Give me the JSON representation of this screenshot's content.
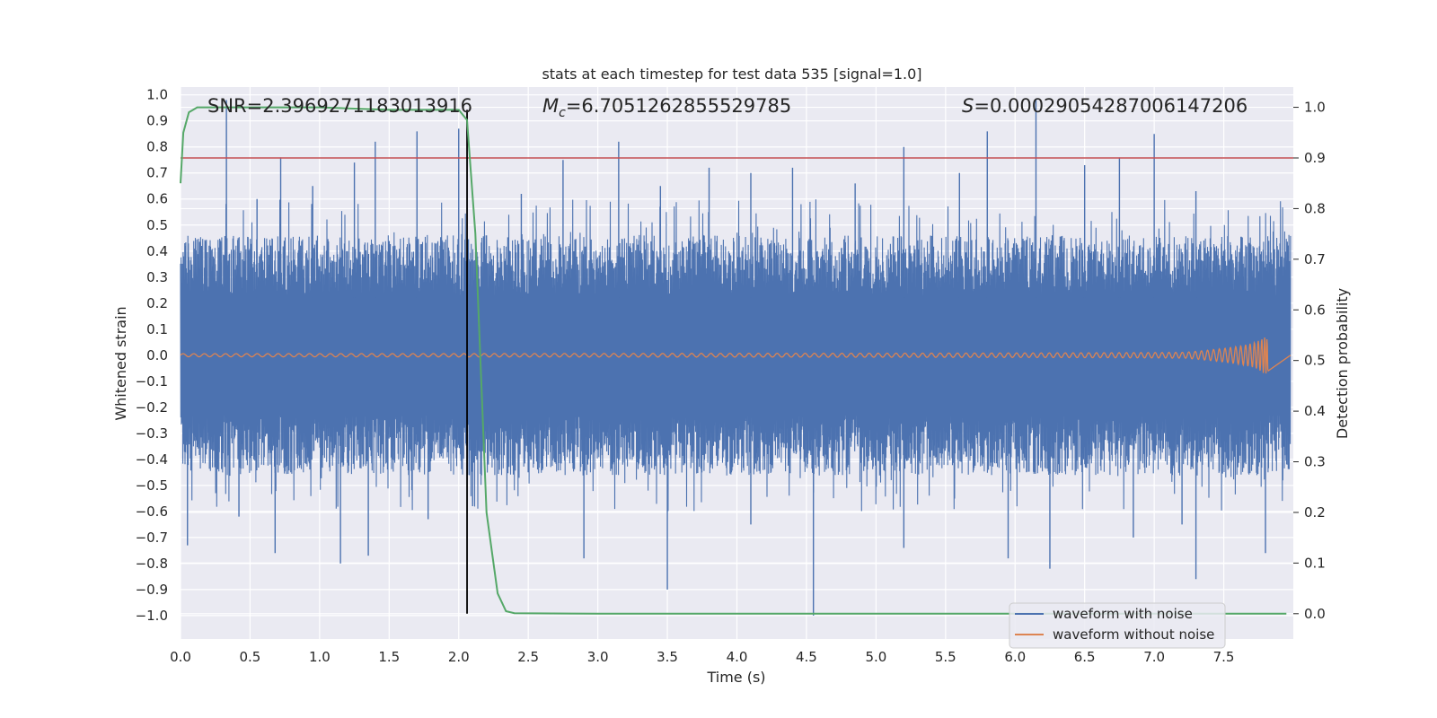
{
  "chart_data": {
    "type": "line",
    "title": "stats at each timestep for test data 535 [signal=1.0]",
    "xlabel": "Time (s)",
    "ylabel": "Whitened strain",
    "y2label": "Detection probability",
    "xlim": [
      0.0,
      8.0
    ],
    "ylim": [
      -1.09,
      1.03
    ],
    "y2lim": [
      -0.05,
      1.04
    ],
    "xticks": [
      "0.0",
      "0.5",
      "1.0",
      "1.5",
      "2.0",
      "2.5",
      "3.0",
      "3.5",
      "4.0",
      "4.5",
      "5.0",
      "5.5",
      "6.0",
      "6.5",
      "7.0",
      "7.5"
    ],
    "yticks": [
      "1.0",
      "0.9",
      "0.8",
      "0.7",
      "0.6",
      "0.5",
      "0.4",
      "0.3",
      "0.2",
      "0.1",
      "0.0",
      "−0.1",
      "−0.2",
      "−0.3",
      "−0.4",
      "−0.5",
      "−0.6",
      "−0.7",
      "−0.8",
      "−0.9",
      "−1.0"
    ],
    "y2ticks": [
      "1.0",
      "0.9",
      "0.8",
      "0.7",
      "0.6",
      "0.5",
      "0.4",
      "0.3",
      "0.2",
      "0.1",
      "0.0"
    ],
    "annotations": {
      "snr": "SNR=2.3969271183013916",
      "mc_symbol": "M",
      "mc_sub": "c",
      "mc_value": "=6.7051262855529785",
      "s_symbol": "S",
      "s_value": "=0.00029054287006147206"
    },
    "threshold": {
      "value": 0.9,
      "axis": "y2",
      "color": "#c44e52"
    },
    "detection_time": 2.06,
    "series": [
      {
        "name": "waveform with noise",
        "color": "#4c72b0",
        "axis": "y",
        "description": "dense whitened strain noise, envelope approx ±0.4 with spikes",
        "band": [
          -0.42,
          0.42
        ],
        "spikes": [
          [
            0.33,
            0.98
          ],
          [
            0.55,
            0.6
          ],
          [
            0.72,
            0.76
          ],
          [
            0.95,
            0.65
          ],
          [
            1.25,
            0.74
          ],
          [
            1.4,
            0.82
          ],
          [
            1.7,
            0.86
          ],
          [
            2.0,
            0.87
          ],
          [
            2.45,
            0.62
          ],
          [
            2.75,
            0.75
          ],
          [
            3.15,
            0.82
          ],
          [
            3.45,
            0.65
          ],
          [
            3.8,
            0.72
          ],
          [
            4.1,
            0.7
          ],
          [
            4.4,
            0.72
          ],
          [
            4.85,
            0.66
          ],
          [
            5.2,
            0.8
          ],
          [
            5.6,
            0.7
          ],
          [
            5.8,
            0.86
          ],
          [
            6.15,
            0.98
          ],
          [
            6.5,
            0.73
          ],
          [
            6.75,
            0.76
          ],
          [
            7.0,
            0.85
          ],
          [
            7.3,
            0.63
          ],
          [
            0.05,
            -0.73
          ],
          [
            0.42,
            -0.62
          ],
          [
            0.68,
            -0.76
          ],
          [
            1.15,
            -0.8
          ],
          [
            1.35,
            -0.77
          ],
          [
            1.78,
            -0.63
          ],
          [
            2.1,
            -0.58
          ],
          [
            2.9,
            -0.78
          ],
          [
            3.5,
            -0.9
          ],
          [
            4.1,
            -0.65
          ],
          [
            4.55,
            -1.0
          ],
          [
            5.2,
            -0.74
          ],
          [
            5.95,
            -0.78
          ],
          [
            6.25,
            -0.82
          ],
          [
            6.85,
            -0.7
          ],
          [
            7.2,
            -0.65
          ],
          [
            7.3,
            -0.86
          ],
          [
            7.8,
            -0.76
          ]
        ]
      },
      {
        "name": "waveform without noise",
        "color": "#dd8452",
        "axis": "y",
        "description": "chirp signal with amplitude increasing toward merger at ~7.82 s",
        "start_amplitude": 0.006,
        "peak_amplitude": 0.07,
        "merger_time": 7.82
      },
      {
        "name": "detection probability",
        "color": "#55a868",
        "axis": "y2",
        "x": [
          0.0,
          0.02,
          0.06,
          0.12,
          0.5,
          1.0,
          1.5,
          1.96,
          2.0,
          2.06,
          2.12,
          2.2,
          2.28,
          2.34,
          2.4,
          3.0,
          4.0,
          5.0,
          6.0,
          7.0,
          7.95
        ],
        "values": [
          0.85,
          0.95,
          0.99,
          1.0,
          1.0,
          1.0,
          0.995,
          0.995,
          0.995,
          0.975,
          0.75,
          0.2,
          0.04,
          0.005,
          0.001,
          0.0,
          0.0,
          0.0,
          0.0,
          0.0,
          0.0
        ]
      }
    ],
    "legend": {
      "position": "lower-right",
      "entries": [
        {
          "label": "waveform with noise",
          "color": "#4c72b0"
        },
        {
          "label": "waveform without noise",
          "color": "#dd8452"
        }
      ]
    }
  }
}
